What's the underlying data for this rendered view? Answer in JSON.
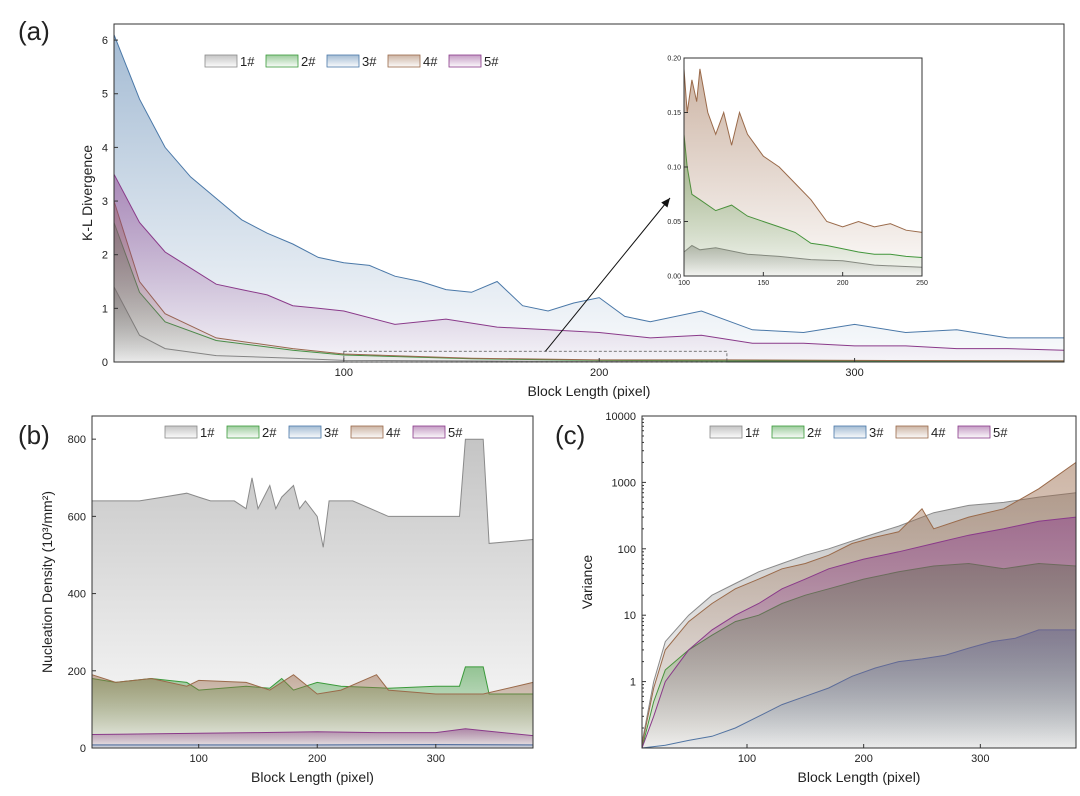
{
  "chart_data": [
    {
      "type": "area",
      "panel": "(a)",
      "xlabel": "Block Length (pixel)",
      "ylabel": "K-L Divergence",
      "xlim": [
        10,
        382
      ],
      "ylim": [
        0,
        6.3
      ],
      "xticks": [
        100,
        200,
        300
      ],
      "yticks": [
        0,
        1,
        2,
        3,
        4,
        5,
        6
      ],
      "legend": "top-left",
      "grid": false,
      "series": [
        {
          "name": "1#",
          "color": "#8a8a8a",
          "x": [
            10,
            20,
            30,
            50,
            80,
            100,
            150,
            200,
            250,
            300,
            382
          ],
          "values": [
            1.4,
            0.5,
            0.25,
            0.12,
            0.07,
            0.03,
            0.02,
            0.01,
            0.01,
            0.01,
            0.01
          ]
        },
        {
          "name": "2#",
          "color": "#3a9a3a",
          "x": [
            10,
            20,
            30,
            50,
            80,
            100,
            150,
            200,
            250,
            300,
            382
          ],
          "values": [
            2.6,
            1.3,
            0.75,
            0.4,
            0.22,
            0.13,
            0.06,
            0.03,
            0.02,
            0.02,
            0.02
          ]
        },
        {
          "name": "3#",
          "color": "#4a78a8",
          "x": [
            10,
            20,
            30,
            40,
            50,
            60,
            70,
            80,
            90,
            100,
            110,
            120,
            130,
            140,
            150,
            160,
            170,
            180,
            190,
            200,
            210,
            220,
            240,
            260,
            280,
            300,
            320,
            340,
            360,
            382
          ],
          "values": [
            6.1,
            4.9,
            4.0,
            3.45,
            3.05,
            2.65,
            2.4,
            2.2,
            1.95,
            1.85,
            1.8,
            1.6,
            1.5,
            1.35,
            1.3,
            1.5,
            1.05,
            0.95,
            1.1,
            1.2,
            0.85,
            0.75,
            0.95,
            0.6,
            0.55,
            0.7,
            0.55,
            0.6,
            0.45,
            0.45
          ]
        },
        {
          "name": "4#",
          "color": "#9a6a4a",
          "x": [
            10,
            20,
            30,
            50,
            80,
            100,
            150,
            200,
            250,
            300,
            382
          ],
          "values": [
            3.0,
            1.5,
            0.9,
            0.45,
            0.25,
            0.15,
            0.07,
            0.04,
            0.04,
            0.03,
            0.02
          ]
        },
        {
          "name": "5#",
          "color": "#8a3a8a",
          "x": [
            10,
            20,
            30,
            40,
            50,
            60,
            70,
            80,
            90,
            100,
            120,
            140,
            160,
            180,
            200,
            220,
            240,
            260,
            280,
            300,
            320,
            340,
            360,
            382
          ],
          "values": [
            3.5,
            2.6,
            2.05,
            1.75,
            1.45,
            1.35,
            1.25,
            1.05,
            1.0,
            0.95,
            0.7,
            0.8,
            0.65,
            0.6,
            0.55,
            0.45,
            0.5,
            0.35,
            0.35,
            0.3,
            0.3,
            0.25,
            0.25,
            0.22
          ]
        }
      ],
      "inset": {
        "xlim": [
          100,
          250
        ],
        "ylim": [
          0,
          0.2
        ],
        "xticks": [
          100,
          150,
          200,
          250
        ],
        "yticks": [
          0.0,
          0.05,
          0.1,
          0.15,
          0.2
        ],
        "tick_labels_y": [
          "0.00",
          "0.05",
          "0.10",
          "0.15",
          "0.20"
        ],
        "series": [
          {
            "name": "1#",
            "color": "#8a8a8a",
            "x": [
              100,
              105,
              110,
              120,
              140,
              160,
              180,
              200,
              220,
              250
            ],
            "values": [
              0.022,
              0.028,
              0.024,
              0.026,
              0.02,
              0.018,
              0.015,
              0.014,
              0.01,
              0.008
            ]
          },
          {
            "name": "2#",
            "color": "#3a9a3a",
            "x": [
              100,
              102,
              105,
              110,
              120,
              130,
              140,
              150,
              160,
              170,
              180,
              190,
              200,
              210,
              220,
              230,
              240,
              250
            ],
            "values": [
              0.13,
              0.1,
              0.075,
              0.07,
              0.06,
              0.065,
              0.055,
              0.05,
              0.045,
              0.04,
              0.03,
              0.028,
              0.025,
              0.022,
              0.02,
              0.02,
              0.018,
              0.017
            ]
          },
          {
            "name": "4#",
            "color": "#9a6a4a",
            "x": [
              100,
              102,
              105,
              108,
              110,
              115,
              120,
              125,
              130,
              135,
              140,
              145,
              150,
              160,
              170,
              180,
              190,
              200,
              210,
              220,
              230,
              240,
              250
            ],
            "values": [
              0.19,
              0.15,
              0.18,
              0.16,
              0.19,
              0.15,
              0.13,
              0.15,
              0.12,
              0.15,
              0.13,
              0.12,
              0.11,
              0.1,
              0.085,
              0.07,
              0.05,
              0.045,
              0.05,
              0.045,
              0.048,
              0.042,
              0.04
            ]
          }
        ],
        "source_box": {
          "x": [
            100,
            250
          ],
          "y": [
            0,
            0.2
          ]
        }
      }
    },
    {
      "type": "area",
      "panel": "(b)",
      "xlabel": "Block Length (pixel)",
      "ylabel": "Nucleation Density (10³/mm²)",
      "xlim": [
        10,
        382
      ],
      "ylim": [
        0,
        860
      ],
      "xticks": [
        100,
        200,
        300
      ],
      "yticks": [
        0,
        200,
        400,
        600,
        800
      ],
      "legend": "top",
      "grid": false,
      "series": [
        {
          "name": "1#",
          "color": "#8a8a8a",
          "x": [
            10,
            30,
            50,
            70,
            90,
            100,
            110,
            130,
            140,
            145,
            150,
            160,
            165,
            170,
            180,
            185,
            190,
            200,
            205,
            210,
            215,
            230,
            260,
            300,
            320,
            325,
            340,
            345,
            382
          ],
          "values": [
            640,
            640,
            640,
            650,
            660,
            650,
            640,
            640,
            620,
            700,
            620,
            680,
            620,
            650,
            680,
            620,
            640,
            600,
            520,
            640,
            640,
            640,
            600,
            600,
            600,
            800,
            800,
            530,
            540
          ]
        },
        {
          "name": "2#",
          "color": "#3a9a3a",
          "x": [
            10,
            30,
            60,
            90,
            100,
            140,
            160,
            170,
            180,
            200,
            220,
            260,
            300,
            320,
            325,
            340,
            345,
            382
          ],
          "values": [
            180,
            170,
            180,
            170,
            150,
            160,
            155,
            180,
            150,
            170,
            160,
            155,
            160,
            160,
            210,
            210,
            140,
            140
          ]
        },
        {
          "name": "3#",
          "color": "#4a78a8",
          "x": [
            10,
            100,
            200,
            300,
            382
          ],
          "values": [
            8,
            8,
            8,
            9,
            8
          ]
        },
        {
          "name": "4#",
          "color": "#9a6a4a",
          "x": [
            10,
            30,
            60,
            90,
            100,
            140,
            160,
            180,
            200,
            220,
            250,
            260,
            300,
            340,
            382
          ],
          "values": [
            190,
            170,
            180,
            160,
            175,
            170,
            150,
            190,
            140,
            150,
            190,
            150,
            140,
            140,
            170
          ]
        },
        {
          "name": "5#",
          "color": "#8a3a8a",
          "x": [
            10,
            100,
            150,
            200,
            250,
            300,
            325,
            340,
            382
          ],
          "values": [
            35,
            38,
            40,
            42,
            40,
            40,
            50,
            45,
            32
          ]
        }
      ]
    },
    {
      "type": "area",
      "panel": "(c)",
      "xlabel": "Block Length (pixel)",
      "ylabel": "Variance",
      "xlim": [
        10,
        382
      ],
      "ylim": [
        0.1,
        10000
      ],
      "yscale": "log",
      "xticks": [
        100,
        200,
        300
      ],
      "yticks": [
        1,
        10,
        100,
        1000,
        10000
      ],
      "tick_labels_y": [
        "1",
        "10",
        "100",
        "1000",
        "10000"
      ],
      "legend": "top",
      "grid": false,
      "series": [
        {
          "name": "1#",
          "color": "#8a8a8a",
          "x": [
            10,
            20,
            30,
            50,
            70,
            90,
            110,
            130,
            150,
            170,
            200,
            230,
            260,
            290,
            320,
            350,
            382
          ],
          "values": [
            0.12,
            1.0,
            4.0,
            10,
            20,
            30,
            45,
            60,
            80,
            100,
            150,
            220,
            350,
            450,
            500,
            600,
            700
          ]
        },
        {
          "name": "2#",
          "color": "#3a9a3a",
          "x": [
            10,
            20,
            30,
            50,
            70,
            90,
            110,
            130,
            150,
            170,
            200,
            230,
            260,
            290,
            320,
            350,
            382
          ],
          "values": [
            0.1,
            0.5,
            1.5,
            3.0,
            5.0,
            8.0,
            10,
            15,
            20,
            25,
            35,
            45,
            55,
            60,
            50,
            60,
            55
          ]
        },
        {
          "name": "3#",
          "color": "#4a78a8",
          "x": [
            10,
            30,
            50,
            70,
            90,
            110,
            130,
            150,
            170,
            190,
            210,
            230,
            250,
            270,
            290,
            310,
            330,
            350,
            382
          ],
          "values": [
            0.1,
            0.11,
            0.13,
            0.15,
            0.2,
            0.3,
            0.45,
            0.6,
            0.8,
            1.2,
            1.6,
            2.0,
            2.2,
            2.5,
            3.2,
            4.0,
            4.5,
            6.0,
            6.0
          ]
        },
        {
          "name": "4#",
          "color": "#9a6a4a",
          "x": [
            10,
            20,
            30,
            50,
            70,
            90,
            110,
            130,
            150,
            170,
            190,
            210,
            230,
            250,
            260,
            290,
            320,
            350,
            382
          ],
          "values": [
            0.11,
            0.8,
            3.0,
            8.0,
            15,
            25,
            35,
            50,
            60,
            80,
            120,
            150,
            180,
            400,
            200,
            300,
            400,
            800,
            2000
          ]
        },
        {
          "name": "5#",
          "color": "#8a3a8a",
          "x": [
            10,
            20,
            30,
            50,
            70,
            90,
            110,
            130,
            150,
            170,
            200,
            230,
            260,
            290,
            320,
            350,
            382
          ],
          "values": [
            0.1,
            0.3,
            1.0,
            3.0,
            6.0,
            10,
            15,
            25,
            35,
            50,
            70,
            90,
            120,
            160,
            200,
            260,
            300
          ]
        }
      ]
    }
  ]
}
